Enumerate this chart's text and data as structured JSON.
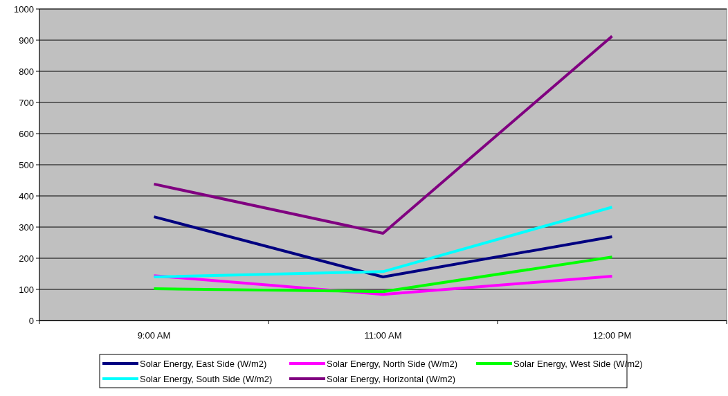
{
  "chart_data": {
    "type": "line",
    "categories": [
      "9:00 AM",
      "11:00 AM",
      "12:00 PM"
    ],
    "series": [
      {
        "name": "Solar Energy, East Side (W/m2)",
        "color": "#000080",
        "values": [
          333,
          140,
          269
        ]
      },
      {
        "name": "Solar Energy, North Side (W/m2)",
        "color": "#ff00ff",
        "values": [
          144,
          84,
          142
        ]
      },
      {
        "name": "Solar Energy, West Side (W/m2)",
        "color": "#00ff00",
        "values": [
          102,
          93,
          204
        ]
      },
      {
        "name": "Solar Energy, South Side (W/m2)",
        "color": "#00ffff",
        "values": [
          140,
          157,
          364
        ]
      },
      {
        "name": "Solar Energy, Horizontal (W/m2)",
        "color": "#800080",
        "values": [
          438,
          280,
          913
        ]
      }
    ],
    "ylim": [
      0,
      1000
    ],
    "yticks": [
      0,
      100,
      200,
      300,
      400,
      500,
      600,
      700,
      800,
      900,
      1000
    ],
    "grid": "y",
    "legend": "bottom",
    "line_style": "solid",
    "marker": "none"
  }
}
